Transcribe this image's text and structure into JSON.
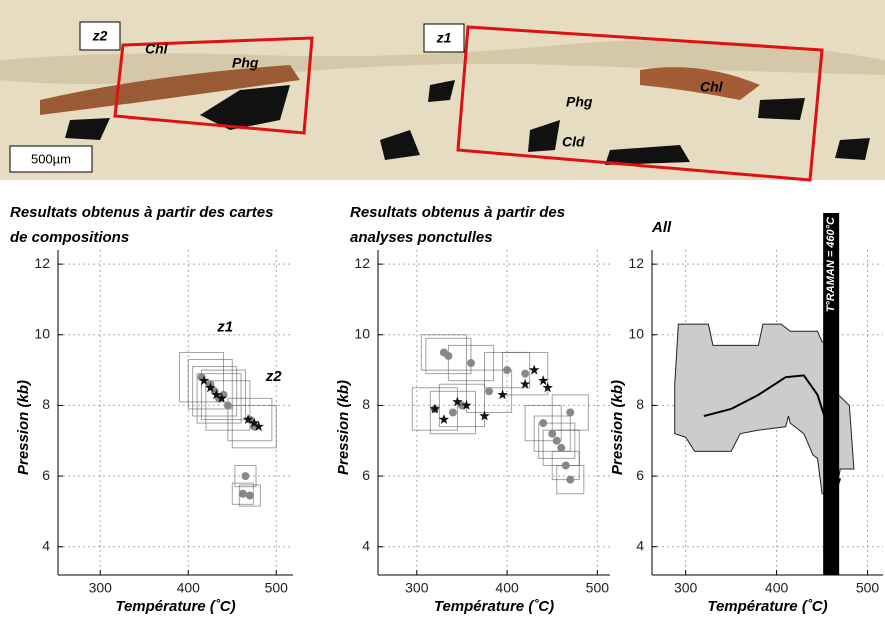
{
  "image": {
    "labels": [
      "z2",
      "z1",
      "Chl",
      "Phg",
      "Chl",
      "Phg",
      "Cld"
    ],
    "scale_bar": "500µm"
  },
  "chart_data": [
    {
      "type": "scatter",
      "title": [
        "Resultats obtenus à partir des cartes",
        "de compositions"
      ],
      "xlabel": "Température (˚C)",
      "ylabel": "Pression (kb)",
      "xlim": [
        252,
        519
      ],
      "ylim": [
        3.2,
        12.4
      ],
      "xticks": [
        300,
        400,
        500
      ],
      "yticks": [
        4,
        6,
        8,
        10,
        12
      ],
      "grid": true,
      "annotations": [
        {
          "x": 442,
          "y": 10.2,
          "text": "z1"
        },
        {
          "x": 497,
          "y": 8.8,
          "text": "z2"
        }
      ],
      "series": [
        {
          "color": "#888888",
          "marker": "circle",
          "x": [
            415,
            425,
            430,
            435,
            440,
            445,
            470,
            475,
            465,
            462,
            470
          ],
          "values": [
            8.8,
            8.6,
            8.4,
            8.2,
            8.3,
            8.0,
            7.6,
            7.4,
            6.0,
            5.5,
            5.45
          ],
          "xerr": [
            25,
            25,
            25,
            25,
            25,
            25,
            25,
            25,
            12,
            12,
            12
          ],
          "yerr": [
            0.7,
            0.7,
            0.7,
            0.7,
            0.7,
            0.7,
            0.6,
            0.6,
            0.3,
            0.3,
            0.3
          ]
        },
        {
          "color": "#111111",
          "marker": "star",
          "x": [
            418,
            425,
            432,
            438,
            468,
            475,
            480
          ],
          "values": [
            8.7,
            8.5,
            8.3,
            8.2,
            7.6,
            7.5,
            7.4
          ]
        }
      ]
    },
    {
      "type": "scatter",
      "title": [
        "Resultats obtenus à partir des",
        "analyses ponctulles"
      ],
      "xlabel": "Température (˚C)",
      "ylabel": "Pression (kb)",
      "xlim": [
        257,
        514
      ],
      "ylim": [
        3.2,
        12.4
      ],
      "xticks": [
        300,
        400,
        500
      ],
      "yticks": [
        4,
        6,
        8,
        10,
        12
      ],
      "grid": true,
      "series": [
        {
          "color": "#888888",
          "marker": "circle",
          "x": [
            320,
            330,
            340,
            350,
            360,
            380,
            400,
            420,
            440,
            450,
            455,
            460,
            465,
            470,
            335,
            470
          ],
          "values": [
            7.9,
            9.5,
            7.8,
            8.0,
            9.2,
            8.4,
            9.0,
            8.9,
            7.5,
            7.2,
            7.0,
            6.8,
            6.3,
            5.9,
            9.4,
            7.8
          ],
          "xerr": [
            25,
            25,
            25,
            25,
            25,
            25,
            25,
            25,
            20,
            20,
            20,
            20,
            15,
            15,
            25,
            20
          ],
          "yerr": [
            0.6,
            0.5,
            0.6,
            0.6,
            0.5,
            0.6,
            0.5,
            0.6,
            0.5,
            0.5,
            0.5,
            0.5,
            0.4,
            0.4,
            0.5,
            0.5
          ]
        },
        {
          "color": "#111111",
          "marker": "star",
          "x": [
            320,
            330,
            345,
            355,
            375,
            395,
            420,
            430,
            440,
            445
          ],
          "values": [
            7.9,
            7.6,
            8.1,
            8.0,
            7.7,
            8.3,
            8.6,
            9.0,
            8.7,
            8.5
          ]
        }
      ]
    },
    {
      "type": "area",
      "title": [
        "All"
      ],
      "xlabel": "Température (˚C)",
      "ylabel": "Pression (kb)",
      "xlim": [
        263,
        517
      ],
      "ylim": [
        3.2,
        12.4
      ],
      "xticks": [
        300,
        400,
        500
      ],
      "yticks": [
        4,
        6,
        8,
        10,
        12
      ],
      "grid": true,
      "band": {
        "x": 460,
        "text": "T°RAMAN = 460°C"
      },
      "area": {
        "color": "#cccccc",
        "x": [
          288,
          292,
          325,
          330,
          380,
          385,
          405,
          415,
          445,
          450,
          462,
          468,
          480,
          485,
          470,
          465,
          450,
          445,
          440,
          430,
          415,
          413,
          410,
          380,
          360,
          350,
          310,
          300,
          288
        ],
        "y": [
          8.6,
          10.3,
          10.3,
          9.7,
          9.7,
          10.3,
          10.3,
          10.1,
          10.1,
          9.8,
          9.8,
          8.3,
          8.0,
          6.2,
          6.2,
          5.5,
          5.5,
          6.5,
          6.6,
          7.2,
          7.5,
          7.7,
          7.4,
          7.3,
          7.2,
          6.7,
          6.7,
          7.1,
          7.2
        ]
      },
      "path": {
        "color": "#000000",
        "x": [
          320,
          350,
          380,
          410,
          430,
          445,
          455,
          460,
          465
        ],
        "y": [
          7.7,
          7.9,
          8.3,
          8.8,
          8.85,
          8.3,
          7.5,
          6.6,
          5.6
        ]
      }
    }
  ]
}
